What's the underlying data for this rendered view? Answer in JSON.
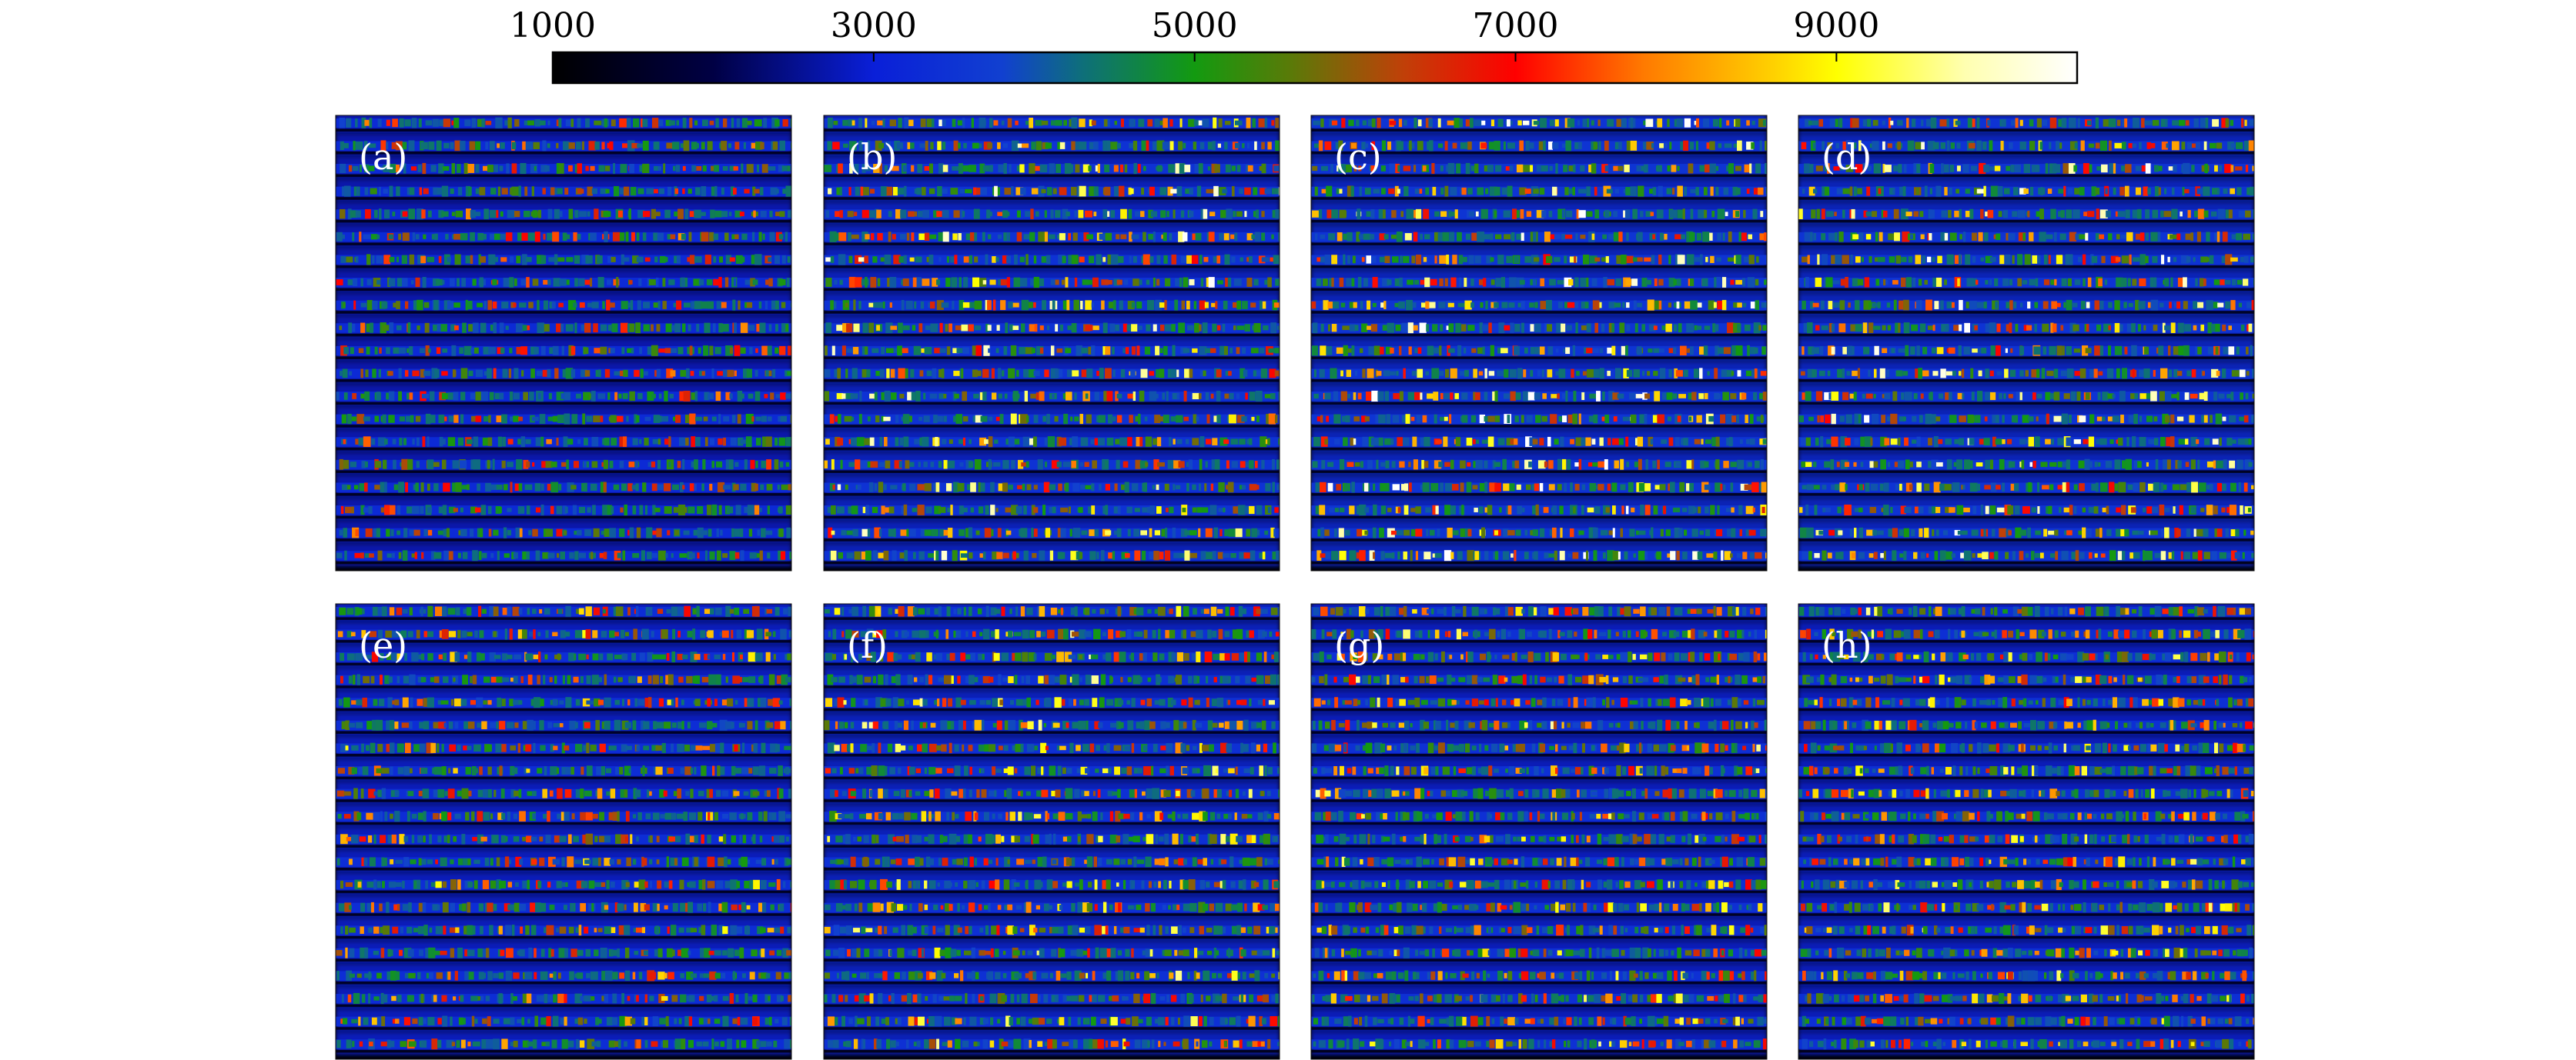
{
  "chart_data": {
    "type": "heatmap",
    "colorbar": {
      "min": 1000,
      "max": 10500,
      "ticks": [
        1000,
        3000,
        5000,
        7000,
        9000
      ],
      "tick_labels": [
        "1000",
        "3000",
        "5000",
        "7000",
        "9000"
      ],
      "orientation": "horizontal",
      "colormap_stops": [
        {
          "value": 1000,
          "color": "#000000"
        },
        {
          "value": 2000,
          "color": "#000044"
        },
        {
          "value": 3000,
          "color": "#0a1fd8"
        },
        {
          "value": 3800,
          "color": "#1140d0"
        },
        {
          "value": 4300,
          "color": "#0e6f7a"
        },
        {
          "value": 5000,
          "color": "#139a10"
        },
        {
          "value": 5600,
          "color": "#5a7a08"
        },
        {
          "value": 6300,
          "color": "#c04008"
        },
        {
          "value": 7000,
          "color": "#ff0000"
        },
        {
          "value": 7800,
          "color": "#ff7a00"
        },
        {
          "value": 8600,
          "color": "#ffd000"
        },
        {
          "value": 9000,
          "color": "#ffff00"
        },
        {
          "value": 9800,
          "color": "#ffffb0"
        },
        {
          "value": 10500,
          "color": "#ffffff"
        }
      ]
    },
    "stripe_count": 20,
    "panels": [
      {
        "label": "(a)",
        "intensity": 0.55
      },
      {
        "label": "(b)",
        "intensity": 0.9
      },
      {
        "label": "(c)",
        "intensity": 1.0
      },
      {
        "label": "(d)",
        "intensity": 0.95
      },
      {
        "label": "(e)",
        "intensity": 0.7
      },
      {
        "label": "(f)",
        "intensity": 0.82
      },
      {
        "label": "(g)",
        "intensity": 0.8
      },
      {
        "label": "(h)",
        "intensity": 0.78
      }
    ]
  }
}
